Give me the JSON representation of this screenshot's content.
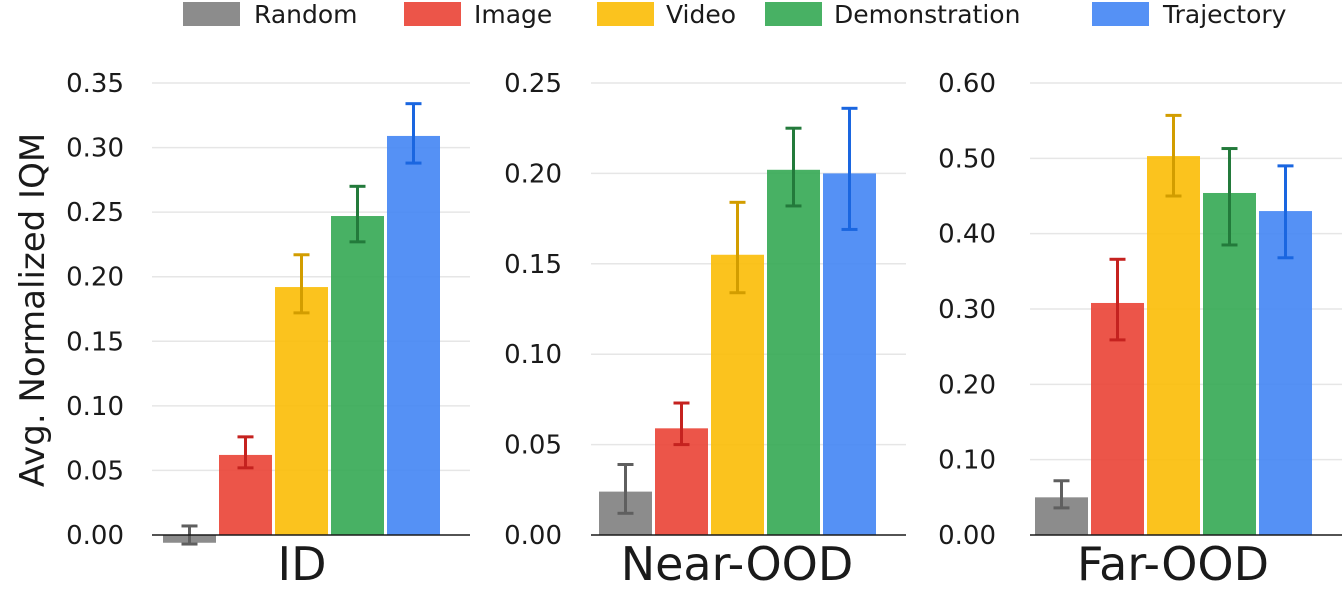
{
  "chart_data": {
    "type": "bar",
    "ylabel": "Avg. Normalized IQM",
    "legend": {
      "position": "top",
      "entries": [
        {
          "label": "Random",
          "color": "#808080"
        },
        {
          "label": "Image",
          "color": "#EA4335"
        },
        {
          "label": "Video",
          "color": "#FBBC05"
        },
        {
          "label": "Demonstration",
          "color": "#34A853"
        },
        {
          "label": "Trajectory",
          "color": "#4285F4"
        }
      ]
    },
    "grid": true,
    "panels": [
      {
        "title": "ID",
        "ylim": [
          0,
          0.35
        ],
        "yticks": [
          "0.00",
          "0.05",
          "0.10",
          "0.15",
          "0.20",
          "0.25",
          "0.30",
          "0.35"
        ],
        "ytick_values": [
          0,
          0.05,
          0.1,
          0.15,
          0.2,
          0.25,
          0.3,
          0.35
        ],
        "series": [
          {
            "name": "Random",
            "value": -0.006,
            "err_low": -0.007,
            "err_high": 0.007
          },
          {
            "name": "Image",
            "value": 0.062,
            "err_low": 0.052,
            "err_high": 0.076
          },
          {
            "name": "Video",
            "value": 0.192,
            "err_low": 0.172,
            "err_high": 0.217
          },
          {
            "name": "Demonstration",
            "value": 0.247,
            "err_low": 0.227,
            "err_high": 0.27
          },
          {
            "name": "Trajectory",
            "value": 0.309,
            "err_low": 0.288,
            "err_high": 0.334
          }
        ]
      },
      {
        "title": "Near-OOD",
        "ylim": [
          0,
          0.25
        ],
        "yticks": [
          "0.00",
          "0.05",
          "0.10",
          "0.15",
          "0.20",
          "0.25"
        ],
        "ytick_values": [
          0,
          0.05,
          0.1,
          0.15,
          0.2,
          0.25
        ],
        "series": [
          {
            "name": "Random",
            "value": 0.024,
            "err_low": 0.012,
            "err_high": 0.039
          },
          {
            "name": "Image",
            "value": 0.059,
            "err_low": 0.05,
            "err_high": 0.073
          },
          {
            "name": "Video",
            "value": 0.155,
            "err_low": 0.134,
            "err_high": 0.184
          },
          {
            "name": "Demonstration",
            "value": 0.202,
            "err_low": 0.182,
            "err_high": 0.225
          },
          {
            "name": "Trajectory",
            "value": 0.2,
            "err_low": 0.169,
            "err_high": 0.236
          }
        ]
      },
      {
        "title": "Far-OOD",
        "ylim": [
          0,
          0.6
        ],
        "yticks": [
          "0.00",
          "0.10",
          "0.20",
          "0.30",
          "0.40",
          "0.50",
          "0.60"
        ],
        "ytick_values": [
          0,
          0.1,
          0.2,
          0.3,
          0.4,
          0.5,
          0.6
        ],
        "series": [
          {
            "name": "Random",
            "value": 0.05,
            "err_low": 0.036,
            "err_high": 0.072
          },
          {
            "name": "Image",
            "value": 0.308,
            "err_low": 0.259,
            "err_high": 0.366
          },
          {
            "name": "Video",
            "value": 0.503,
            "err_low": 0.45,
            "err_high": 0.557
          },
          {
            "name": "Demonstration",
            "value": 0.454,
            "err_low": 0.385,
            "err_high": 0.513
          },
          {
            "name": "Trajectory",
            "value": 0.43,
            "err_low": 0.368,
            "err_high": 0.49
          }
        ]
      }
    ]
  }
}
